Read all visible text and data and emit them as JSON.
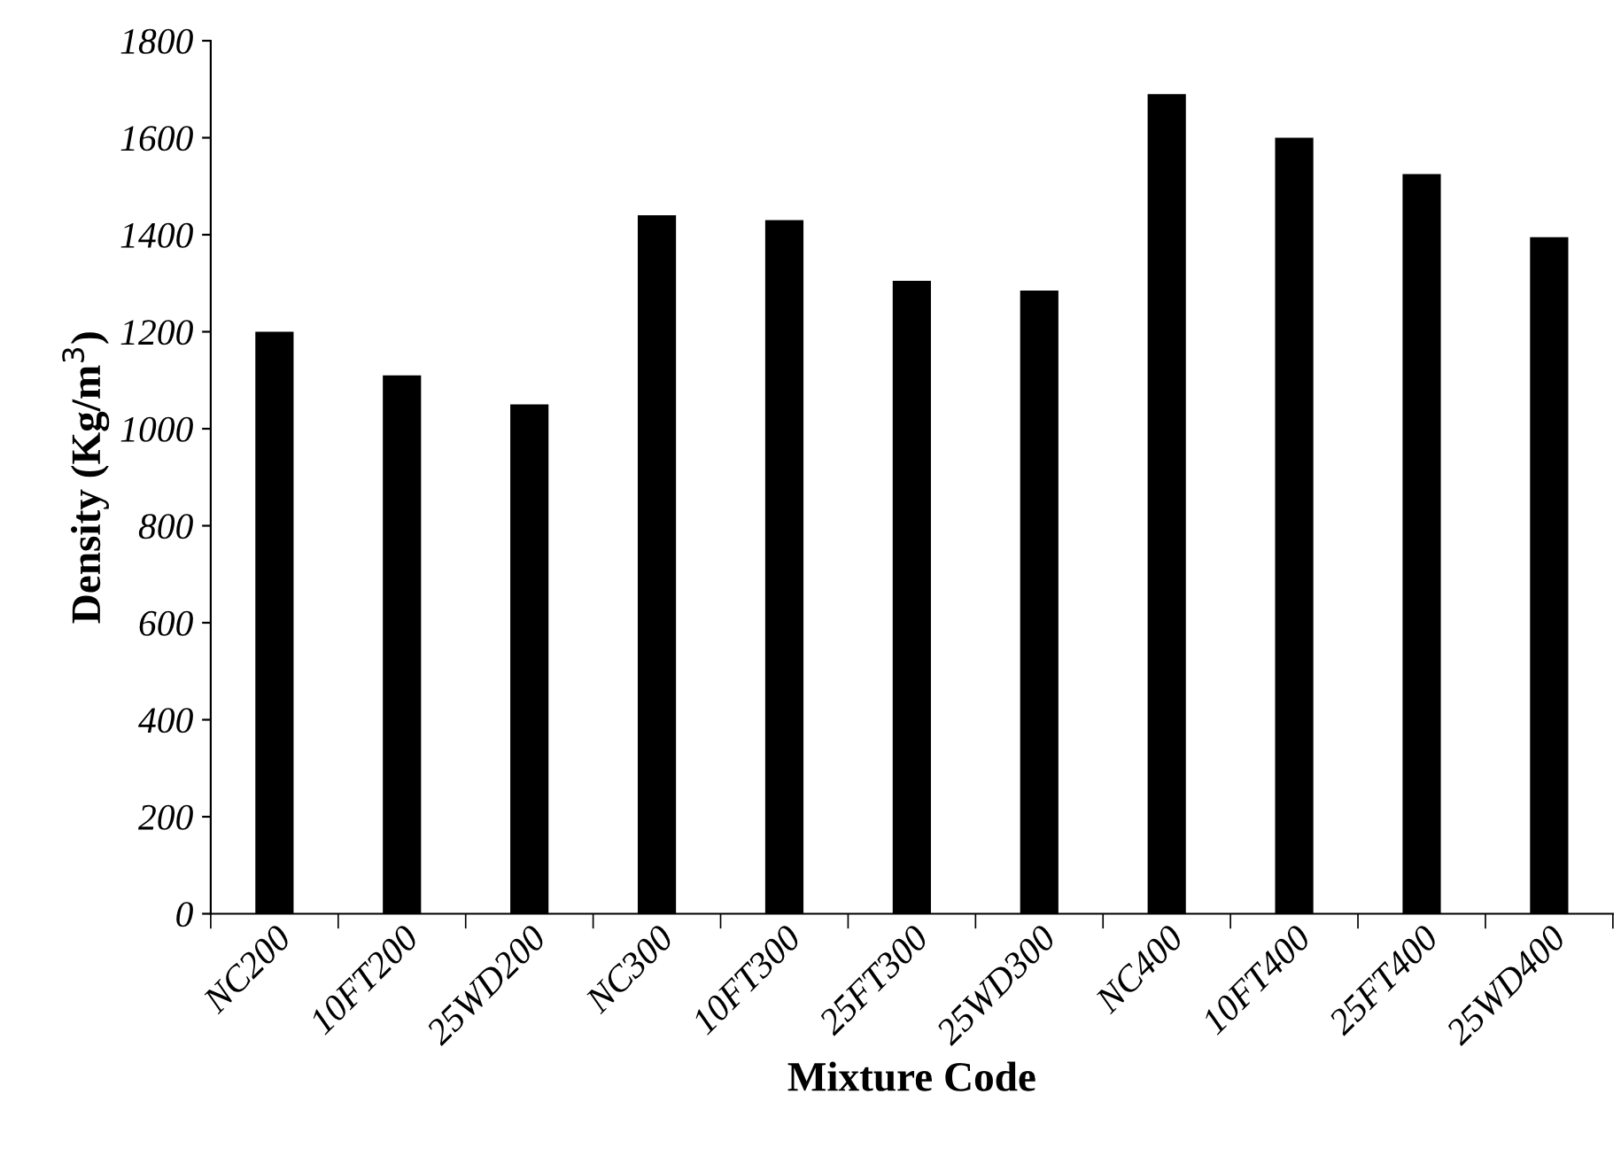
{
  "chart_data": {
    "type": "bar",
    "xlabel": "Mixture Code",
    "ylabel": "Density (Kg/m$^{3}$)",
    "categories": [
      "NC200",
      "10FT200",
      "25WD200",
      "NC300",
      "10FT300",
      "25FT300",
      "25WD300",
      "NC400",
      "10FT400",
      "25FT400",
      "25WD400"
    ],
    "values": [
      1200,
      1110,
      1050,
      1440,
      1430,
      1305,
      1285,
      1690,
      1600,
      1525,
      1395
    ],
    "color": "#000000",
    "ylim": [
      0,
      1800
    ],
    "yticks": [
      0,
      200,
      400,
      600,
      800,
      1000,
      1200,
      1400,
      1600,
      1800
    ],
    "grid": false,
    "legend": false
  }
}
